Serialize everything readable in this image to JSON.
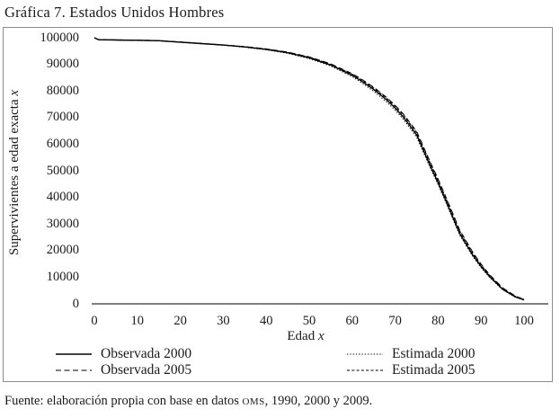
{
  "title": "Gráfica 7. Estados Unidos Hombres",
  "footer": {
    "prefix": "Fuente: elaboración propia con base en datos ",
    "org": "OMS",
    "suffix": ", 1990, 2000 y 2009."
  },
  "chart_data": {
    "type": "line",
    "title": "Gráfica 7. Estados Unidos Hombres",
    "xlabel": "Edad x",
    "ylabel": "Supervivientes a edad exacta x",
    "xlabel_parts": {
      "text": "Edad ",
      "variable": "x"
    },
    "ylabel_parts": {
      "text": "Supervivientes a edad exacta ",
      "variable": "x"
    },
    "xlim": [
      0,
      100
    ],
    "ylim": [
      0,
      100000
    ],
    "x_ticks": [
      0,
      10,
      20,
      30,
      40,
      50,
      60,
      70,
      80,
      90,
      100
    ],
    "y_ticks": [
      0,
      10000,
      20000,
      30000,
      40000,
      50000,
      60000,
      70000,
      80000,
      90000,
      100000
    ],
    "grid": false,
    "legend_position": "bottom",
    "line_color": "#000000",
    "x": [
      0,
      1,
      5,
      10,
      15,
      20,
      25,
      30,
      35,
      40,
      45,
      50,
      55,
      60,
      62,
      65,
      68,
      70,
      72,
      75,
      78,
      80,
      82,
      85,
      88,
      90,
      92,
      95,
      98,
      100
    ],
    "series": [
      {
        "name": "Observada 2000",
        "style": "solid",
        "values": [
          100000,
          99250,
          99150,
          99050,
          98900,
          98350,
          97800,
          97250,
          96550,
          95650,
          94350,
          92450,
          89750,
          85900,
          83900,
          80600,
          76700,
          73600,
          70000,
          63500,
          52500,
          45500,
          38000,
          26500,
          18500,
          14000,
          10200,
          5500,
          2600,
          1500
        ]
      },
      {
        "name": "Observada 2005",
        "style": "dashed",
        "values": [
          100000,
          99300,
          99200,
          99100,
          98950,
          98400,
          97850,
          97300,
          96650,
          95800,
          94600,
          92800,
          90200,
          86500,
          84600,
          81400,
          77600,
          74600,
          71100,
          64800,
          53900,
          46900,
          39400,
          27800,
          19600,
          14900,
          10900,
          6000,
          2900,
          1700
        ]
      },
      {
        "name": "Estimada 2000",
        "style": "dotted",
        "values": [
          100000,
          99200,
          99100,
          99000,
          98850,
          98300,
          97750,
          97180,
          96450,
          95500,
          94150,
          92200,
          89400,
          85400,
          83300,
          79900,
          75900,
          72800,
          69200,
          62700,
          51800,
          44800,
          37300,
          25900,
          18000,
          13600,
          9900,
          5300,
          2500,
          1400
        ]
      },
      {
        "name": "Estimada 2005",
        "style": "shortdash",
        "values": [
          100000,
          99280,
          99170,
          99070,
          98920,
          98380,
          97830,
          97280,
          96620,
          95760,
          94520,
          92700,
          90050,
          86300,
          84400,
          81100,
          77300,
          74300,
          70800,
          64400,
          53500,
          46400,
          38900,
          27400,
          19200,
          14600,
          10600,
          5800,
          2800,
          1650
        ]
      }
    ]
  }
}
